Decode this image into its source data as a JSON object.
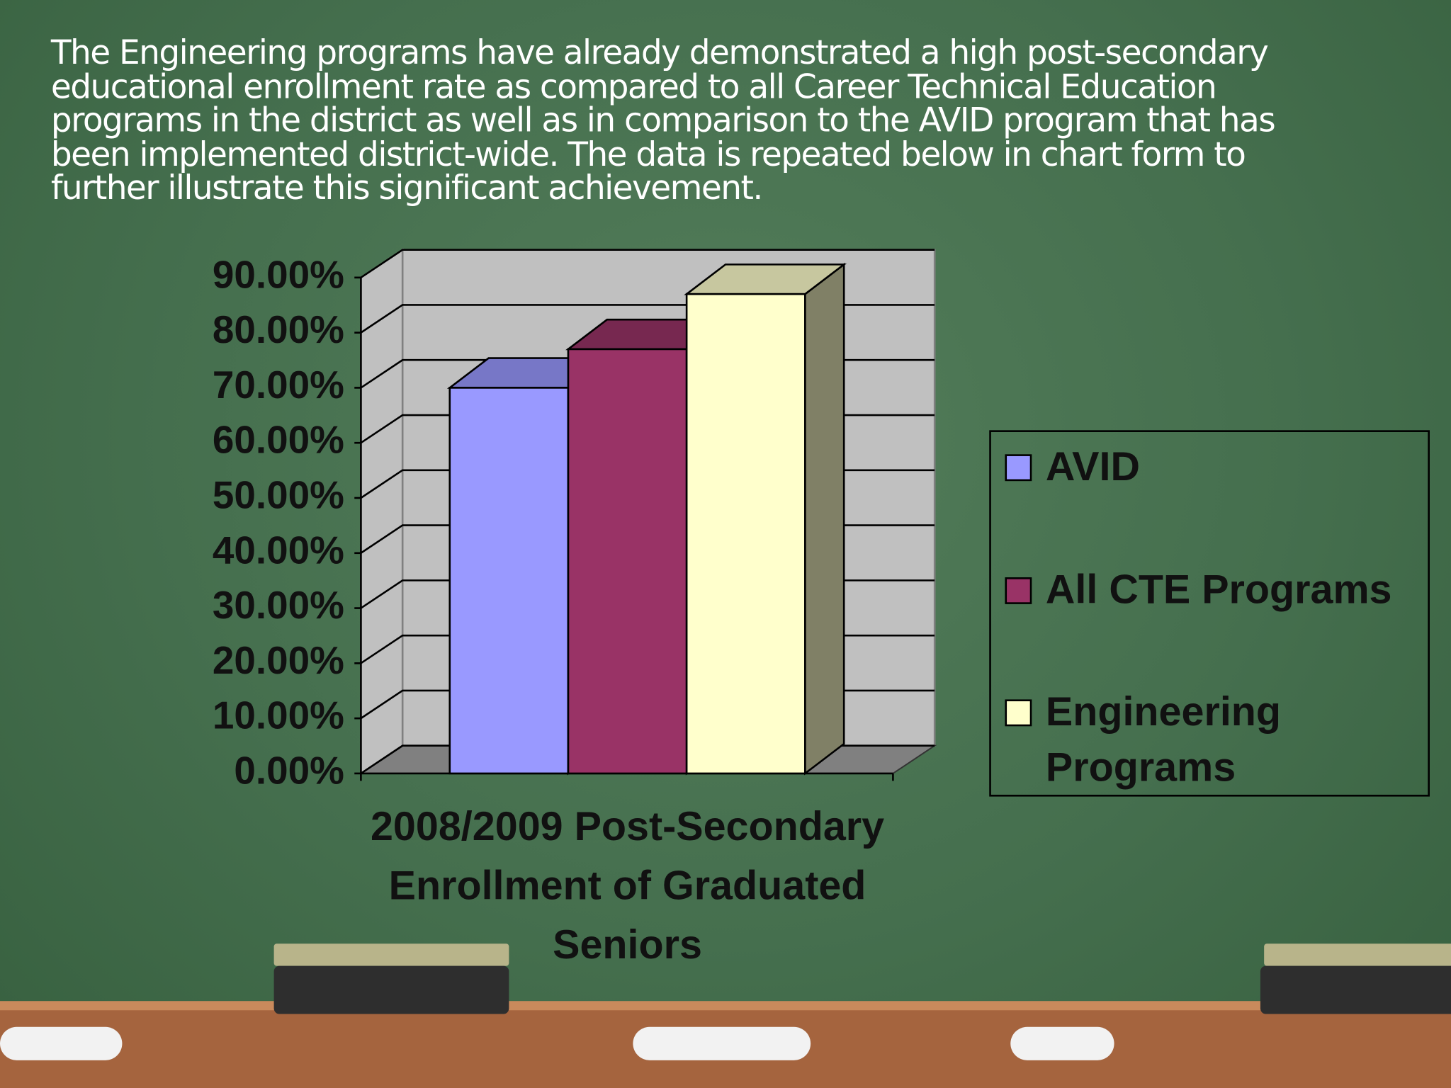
{
  "paragraph": "The Engineering programs have already demonstrated a high post-secondary educational enrollment rate as compared to all Career Technical Education programs in the district as well as in comparison to the AVID program that has been implemented district-wide.  The data is repeated below in chart form to further illustrate this significant achievement.",
  "chart_data": {
    "type": "bar3d",
    "categories": [
      "2008/2009 Post-Secondary Enrollment of Graduated Seniors"
    ],
    "series": [
      {
        "name": "AVID",
        "color": "#9999ff",
        "values": [
          70
        ]
      },
      {
        "name": "All CTE Programs",
        "color": "#993366",
        "values": [
          77
        ]
      },
      {
        "name": "Engineering Programs",
        "color": "#ffffcc",
        "values": [
          87
        ]
      }
    ],
    "ylim": [
      0,
      90
    ],
    "yticks": [
      {
        "value": 0,
        "label": "0.00%"
      },
      {
        "value": 10,
        "label": "10.00%"
      },
      {
        "value": 20,
        "label": "20.00%"
      },
      {
        "value": 30,
        "label": "30.00%"
      },
      {
        "value": 40,
        "label": "40.00%"
      },
      {
        "value": 50,
        "label": "50.00%"
      },
      {
        "value": 60,
        "label": "60.00%"
      },
      {
        "value": 70,
        "label": "70.00%"
      },
      {
        "value": 80,
        "label": "80.00%"
      },
      {
        "value": 90,
        "label": "90.00%"
      }
    ],
    "grid": true,
    "legend": "right"
  }
}
